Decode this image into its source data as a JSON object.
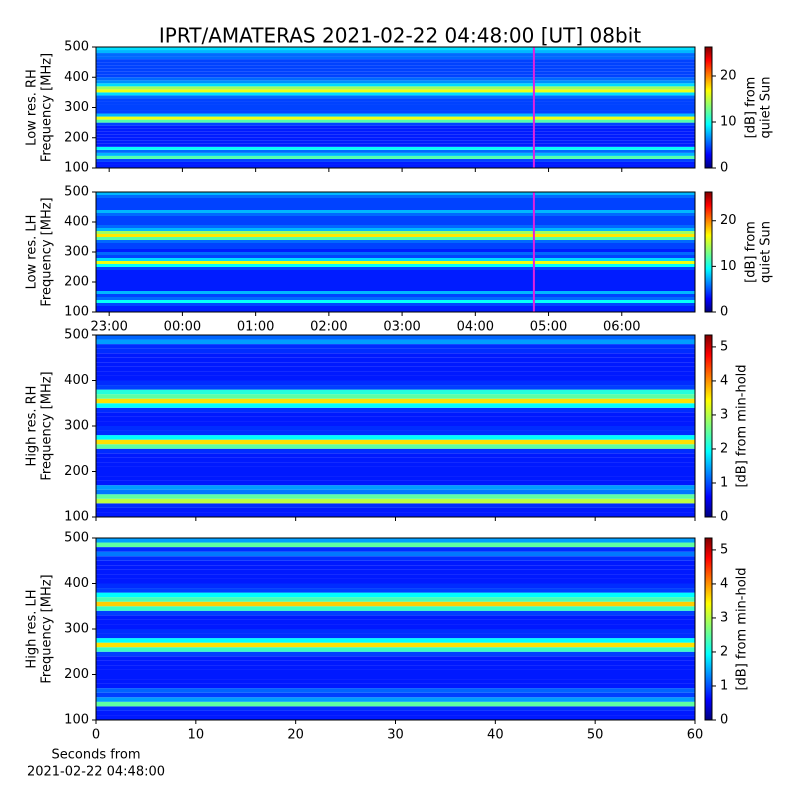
{
  "title": "IPRT/AMATERAS 2021-02-22 04:48:00 [UT]   08bit",
  "chart_data": [
    {
      "type": "heatmap",
      "ylabel": [
        "Low res. RH",
        "Frequency [MHz]"
      ],
      "ylim": [
        100,
        500
      ],
      "yticks": [
        100,
        200,
        300,
        400,
        500
      ],
      "xlim": [
        22.82,
        31.0
      ],
      "xticks": [
        {
          "value": 23,
          "label": "23:00"
        },
        {
          "value": 24,
          "label": "00:00"
        },
        {
          "value": 25,
          "label": "01:00"
        },
        {
          "value": 26,
          "label": "02:00"
        },
        {
          "value": 27,
          "label": "03:00"
        },
        {
          "value": 28,
          "label": "04:00"
        },
        {
          "value": 29,
          "label": "05:00"
        },
        {
          "value": 30,
          "label": "06:00"
        }
      ],
      "show_xtick_labels": false,
      "vline": 28.8,
      "vline_color": "#e020e0",
      "clim": [
        0,
        26.3
      ],
      "cticks": [
        0,
        10,
        20
      ],
      "clabel": [
        "[dB] from",
        "quiet Sun"
      ],
      "y": [
        100,
        110,
        120,
        130,
        140,
        150,
        160,
        170,
        180,
        190,
        200,
        210,
        220,
        230,
        240,
        250,
        260,
        270,
        280,
        290,
        300,
        310,
        320,
        330,
        340,
        350,
        360,
        370,
        380,
        390,
        400,
        410,
        420,
        430,
        440,
        450,
        460,
        470,
        480,
        490
      ],
      "values": [
        4,
        4,
        5,
        12,
        8,
        6,
        10,
        4,
        4,
        4,
        4,
        4,
        4,
        4,
        5,
        12,
        16,
        8,
        5,
        5,
        5,
        5,
        5,
        6,
        9,
        16,
        14,
        9,
        7,
        6,
        5,
        5,
        5,
        5,
        5,
        5,
        6,
        6,
        8,
        9
      ]
    },
    {
      "type": "heatmap",
      "ylabel": [
        "Low res. LH",
        "Frequency [MHz]"
      ],
      "ylim": [
        100,
        500
      ],
      "yticks": [
        100,
        200,
        300,
        400,
        500
      ],
      "xlim": [
        22.82,
        31.0
      ],
      "xticks": [
        {
          "value": 23,
          "label": "23:00"
        },
        {
          "value": 24,
          "label": "00:00"
        },
        {
          "value": 25,
          "label": "01:00"
        },
        {
          "value": 26,
          "label": "02:00"
        },
        {
          "value": 27,
          "label": "03:00"
        },
        {
          "value": 28,
          "label": "04:00"
        },
        {
          "value": 29,
          "label": "05:00"
        },
        {
          "value": 30,
          "label": "06:00"
        }
      ],
      "show_xtick_labels": true,
      "vline": 28.8,
      "vline_color": "#e020e0",
      "clim": [
        0,
        26.3
      ],
      "cticks": [
        0,
        10,
        20
      ],
      "clabel": [
        "[dB] from",
        "quiet Sun"
      ],
      "y": [
        100,
        110,
        120,
        130,
        140,
        150,
        160,
        170,
        180,
        190,
        200,
        210,
        220,
        230,
        240,
        250,
        260,
        270,
        280,
        290,
        300,
        310,
        320,
        330,
        340,
        350,
        360,
        370,
        380,
        390,
        400,
        410,
        420,
        430,
        440,
        450,
        460,
        470,
        480,
        490
      ],
      "values": [
        4,
        4,
        5,
        10,
        6,
        5,
        8,
        4,
        4,
        4,
        4,
        4,
        4,
        4,
        5,
        10,
        16,
        9,
        5,
        6,
        4,
        5,
        5,
        6,
        12,
        17,
        14,
        8,
        6,
        5,
        5,
        5,
        6,
        8,
        5,
        5,
        5,
        5,
        6,
        8
      ]
    },
    {
      "type": "heatmap",
      "ylabel": [
        "High res. RH",
        "Frequency [MHz]"
      ],
      "ylim": [
        100,
        500
      ],
      "yticks": [
        100,
        200,
        300,
        400,
        500
      ],
      "xlim": [
        0,
        60
      ],
      "xticks": [
        0,
        10,
        20,
        30,
        40,
        50,
        60
      ],
      "show_xtick_labels": false,
      "clim": [
        0,
        5.35
      ],
      "cticks": [
        0,
        1,
        2,
        3,
        4,
        5
      ],
      "clabel": [
        "[dB] from min-hold"
      ],
      "y": [
        100,
        110,
        120,
        130,
        140,
        150,
        160,
        170,
        180,
        190,
        200,
        210,
        220,
        230,
        240,
        250,
        260,
        270,
        280,
        290,
        300,
        310,
        320,
        330,
        340,
        350,
        360,
        370,
        380,
        390,
        400,
        410,
        420,
        430,
        440,
        450,
        460,
        470,
        480,
        490
      ],
      "values": [
        0.8,
        0.8,
        0.9,
        3,
        2.5,
        1.3,
        1.5,
        0.8,
        0.8,
        0.8,
        0.8,
        0.8,
        0.8,
        0.8,
        0.9,
        2.5,
        3.5,
        2,
        0.9,
        0.9,
        0.8,
        0.8,
        0.8,
        0.9,
        2,
        3.5,
        2.5,
        2.2,
        1,
        0.9,
        0.8,
        0.8,
        0.8,
        0.8,
        0.8,
        0.8,
        0.9,
        0.9,
        1.5,
        1.2
      ]
    },
    {
      "type": "heatmap",
      "ylabel": [
        "High res. LH",
        "Frequency [MHz]"
      ],
      "ylim": [
        100,
        500
      ],
      "yticks": [
        100,
        200,
        300,
        400,
        500
      ],
      "xlim": [
        0,
        60
      ],
      "xticks": [
        0,
        10,
        20,
        30,
        40,
        50,
        60
      ],
      "show_xtick_labels": true,
      "xlabel": [
        "Seconds from",
        "2021-02-22 04:48:00"
      ],
      "clim": [
        0,
        5.35
      ],
      "cticks": [
        0,
        1,
        2,
        3,
        4,
        5
      ],
      "clabel": [
        "[dB] from min-hold"
      ],
      "y": [
        100,
        110,
        120,
        130,
        140,
        150,
        160,
        170,
        180,
        190,
        200,
        210,
        220,
        230,
        240,
        250,
        260,
        270,
        280,
        290,
        300,
        310,
        320,
        330,
        340,
        350,
        360,
        370,
        380,
        390,
        400,
        410,
        420,
        430,
        440,
        450,
        460,
        470,
        480,
        490
      ],
      "values": [
        0.8,
        0.8,
        0.9,
        2.5,
        1.5,
        1,
        1.2,
        0.8,
        0.8,
        0.8,
        0.8,
        0.8,
        0.8,
        0.8,
        1,
        2.3,
        3.5,
        2,
        0.9,
        0.9,
        0.8,
        0.8,
        0.8,
        1,
        2.3,
        3.6,
        2.4,
        2,
        1,
        0.9,
        0.8,
        0.8,
        0.8,
        0.8,
        0.8,
        0.9,
        1.3,
        0.9,
        2.5,
        1.5
      ]
    }
  ]
}
